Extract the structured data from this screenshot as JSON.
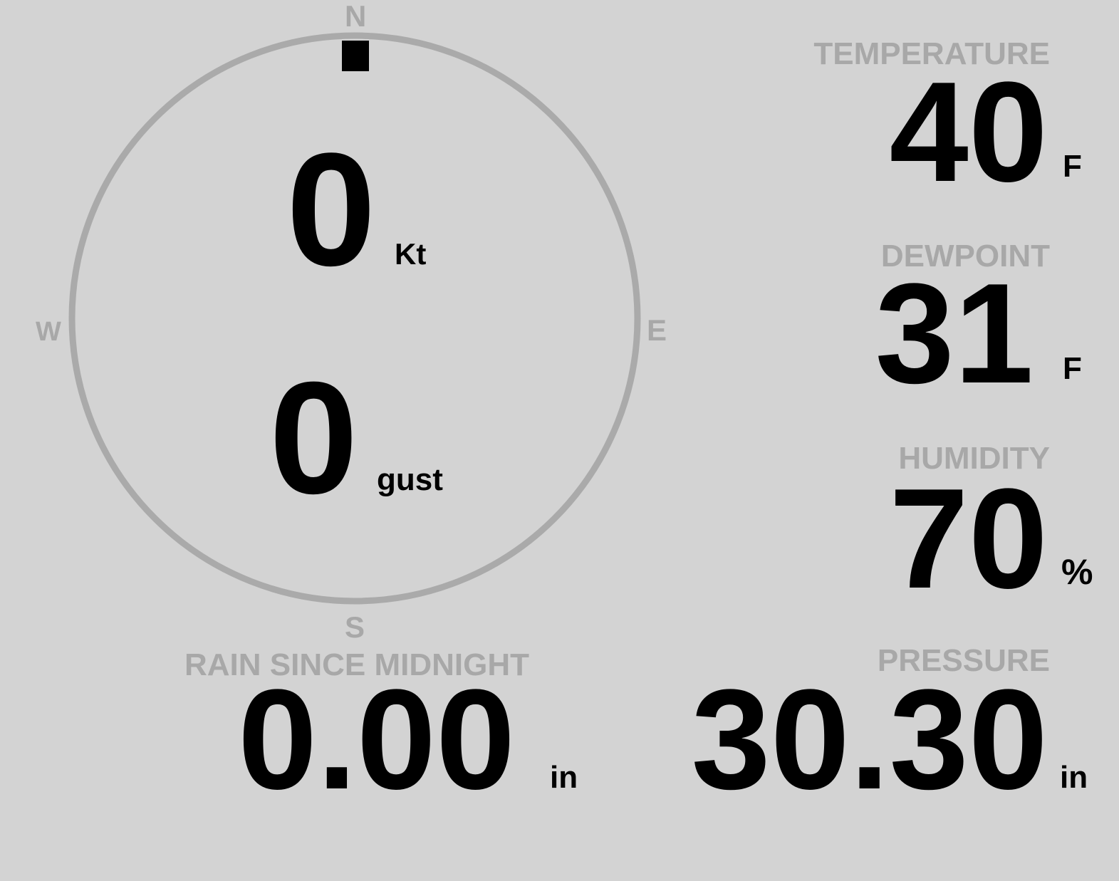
{
  "wind": {
    "compass": {
      "north": "N",
      "south": "S",
      "east": "E",
      "west": "W"
    },
    "direction_deg": 0,
    "speed": "0",
    "speed_unit": "Kt",
    "gust": "0",
    "gust_unit": "gust",
    "ring_color": "#aaaaaa"
  },
  "temperature": {
    "label": "TEMPERATURE",
    "value": "40",
    "unit": "F"
  },
  "dewpoint": {
    "label": "DEWPOINT",
    "value": "31",
    "unit": "F"
  },
  "humidity": {
    "label": "HUMIDITY",
    "value": "70",
    "unit": "%"
  },
  "rain": {
    "label": "RAIN SINCE MIDNIGHT",
    "value": "0.00",
    "unit": "in"
  },
  "pressure": {
    "label": "PRESSURE",
    "value": "30.30",
    "unit": "in"
  },
  "colors": {
    "background": "#d3d3d3",
    "label": "#a8a8a8",
    "value": "#000000"
  }
}
